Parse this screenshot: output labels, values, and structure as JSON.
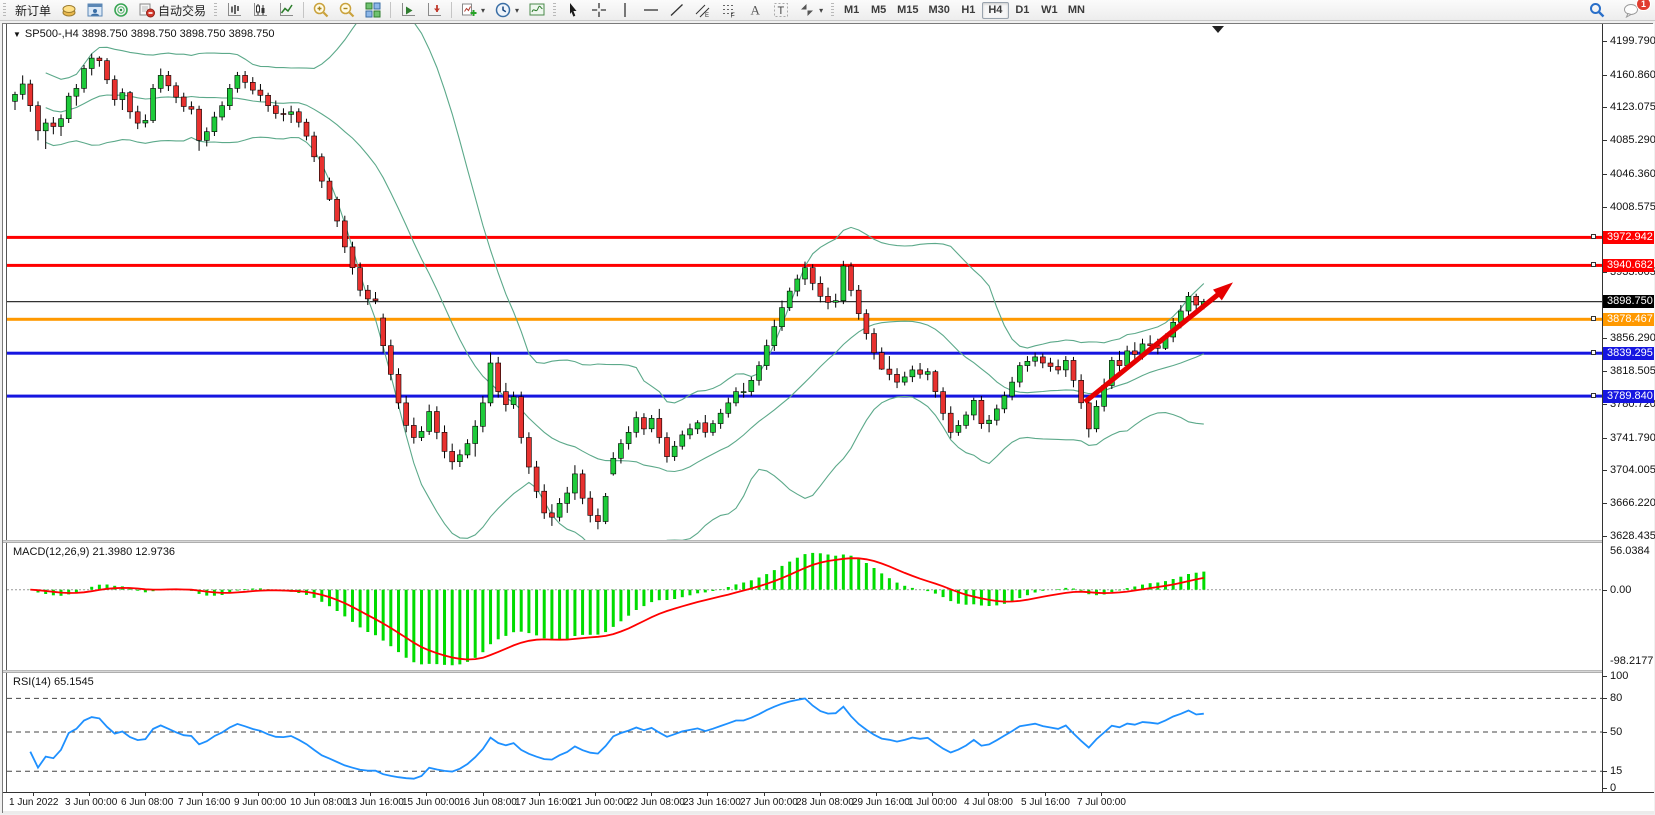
{
  "toolbar": {
    "new_order_label": "新订单",
    "autotrading_label": "自动交易",
    "icon_buttons_left": [
      "gold-seal-icon",
      "user-window-icon",
      "broadcast-icon"
    ],
    "chart_type_buttons": [
      "bar-chart-icon",
      "candlestick-icon",
      "line-chart-icon"
    ],
    "zoom_buttons": [
      "zoom-in-icon",
      "zoom-out-icon",
      "tile-windows-icon"
    ],
    "scroll_buttons": [
      "auto-scroll-icon",
      "chart-shift-icon"
    ],
    "dropdown_buttons": [
      "indicators-icon",
      "periods-clock-icon",
      "template-icon"
    ],
    "draw_buttons": [
      "cursor-icon",
      "crosshair-icon",
      "vertical-line-icon",
      "horizontal-line-icon",
      "trendline-icon",
      "channel-icon",
      "fibonacci-icon",
      "text-icon",
      "label-icon",
      "arrows-icon"
    ],
    "timeframes": [
      "M1",
      "M5",
      "M15",
      "M30",
      "H1",
      "H4",
      "D1",
      "W1",
      "MN"
    ],
    "active_timeframe": "H4",
    "notification_count": "1"
  },
  "chart": {
    "title": "SP500-,H4  3898.750 3898.750 3898.750 3898.750",
    "symbol": "SP500-",
    "period": "H4"
  },
  "price_axis": {
    "ticks": [
      "4199.790",
      "4160.860",
      "4123.075",
      "4085.290",
      "4046.360",
      "4008.575",
      "3933.005",
      "3856.290",
      "3818.505",
      "3780.720",
      "3741.790",
      "3704.005",
      "3666.220",
      "3628.435"
    ],
    "range_max": 4217,
    "range_min": 3626
  },
  "time_axis": {
    "labels": [
      "1 Jun 2022",
      "3 Jun 00:00",
      "6 Jun 08:00",
      "7 Jun 16:00",
      "9 Jun 00:00",
      "10 Jun 08:00",
      "13 Jun 16:00",
      "15 Jun 00:00",
      "16 Jun 08:00",
      "17 Jun 16:00",
      "21 Jun 00:00",
      "22 Jun 08:00",
      "23 Jun 16:00",
      "27 Jun 00:00",
      "28 Jun 08:00",
      "29 Jun 16:00",
      "1 Jul 00:00",
      "4 Jul 08:00",
      "5 Jul 16:00",
      "7 Jul 00:00"
    ]
  },
  "chart_data": {
    "type": "candlestick",
    "title": "SP500- H4",
    "colors": {
      "up": "#1ecb3a",
      "down": "#e8312f",
      "wick": "#000000",
      "bands": "#5ca98a",
      "macd_hist": "#00dc00",
      "macd_signal": "#ff0000",
      "rsi": "#1e90ff",
      "arrow": "#e60000"
    },
    "levels": [
      {
        "price": 3972.942,
        "label": "3972.942",
        "color": "#ff0000",
        "thickness": 3
      },
      {
        "price": 3940.682,
        "label": "3940.682",
        "color": "#ff0000",
        "thickness": 3
      },
      {
        "price": 3898.75,
        "label": "3898.750",
        "color": "#000000",
        "thickness": 1,
        "current": true
      },
      {
        "price": 3878.467,
        "label": "3878.467",
        "color": "#ff9900",
        "thickness": 3
      },
      {
        "price": 3839.295,
        "label": "3839.295",
        "color": "#1616e0",
        "thickness": 3
      },
      {
        "price": 3789.84,
        "label": "3789.840",
        "color": "#1616e0",
        "thickness": 3
      }
    ],
    "bollinger": {
      "period": 20,
      "deviation": 2
    },
    "arrow": {
      "from_bar": 139.5,
      "from_price": 3783,
      "to_bar": 158.8,
      "to_price": 3921
    },
    "ohlc": [
      [
        4130,
        4141,
        4120,
        4138
      ],
      [
        4138,
        4160,
        4132,
        4150
      ],
      [
        4150,
        4155,
        4118,
        4125
      ],
      [
        4125,
        4130,
        4085,
        4096
      ],
      [
        4096,
        4110,
        4075,
        4105
      ],
      [
        4105,
        4112,
        4092,
        4101
      ],
      [
        4101,
        4115,
        4090,
        4110
      ],
      [
        4110,
        4140,
        4105,
        4136
      ],
      [
        4136,
        4150,
        4125,
        4145
      ],
      [
        4145,
        4172,
        4140,
        4168
      ],
      [
        4168,
        4185,
        4160,
        4180
      ],
      [
        4180,
        4182,
        4170,
        4177
      ],
      [
        4177,
        4180,
        4150,
        4155
      ],
      [
        4155,
        4160,
        4125,
        4132
      ],
      [
        4132,
        4145,
        4120,
        4140
      ],
      [
        4140,
        4142,
        4110,
        4118
      ],
      [
        4118,
        4125,
        4098,
        4105
      ],
      [
        4105,
        4115,
        4100,
        4108
      ],
      [
        4108,
        4150,
        4105,
        4145
      ],
      [
        4145,
        4168,
        4140,
        4160
      ],
      [
        4160,
        4165,
        4142,
        4148
      ],
      [
        4148,
        4152,
        4128,
        4135
      ],
      [
        4135,
        4140,
        4118,
        4124
      ],
      [
        4124,
        4130,
        4115,
        4121
      ],
      [
        4121,
        4125,
        4073,
        4085
      ],
      [
        4085,
        4100,
        4078,
        4095
      ],
      [
        4095,
        4118,
        4090,
        4112
      ],
      [
        4112,
        4130,
        4108,
        4125
      ],
      [
        4125,
        4150,
        4120,
        4145
      ],
      [
        4145,
        4164,
        4140,
        4160
      ],
      [
        4160,
        4165,
        4145,
        4152
      ],
      [
        4152,
        4158,
        4138,
        4143
      ],
      [
        4143,
        4150,
        4130,
        4137
      ],
      [
        4137,
        4140,
        4118,
        4125
      ],
      [
        4125,
        4131,
        4110,
        4116
      ],
      [
        4116,
        4122,
        4107,
        4115
      ],
      [
        4115,
        4125,
        4105,
        4118
      ],
      [
        4118,
        4122,
        4100,
        4106
      ],
      [
        4106,
        4110,
        4085,
        4090
      ],
      [
        4090,
        4095,
        4060,
        4066
      ],
      [
        4066,
        4070,
        4030,
        4038
      ],
      [
        4038,
        4042,
        4015,
        4017
      ],
      [
        4017,
        4020,
        3985,
        3992
      ],
      [
        3992,
        3998,
        3955,
        3962
      ],
      [
        3962,
        3968,
        3930,
        3938
      ],
      [
        3938,
        3944,
        3905,
        3912
      ],
      [
        3912,
        3918,
        3895,
        3902
      ],
      [
        3902,
        3910,
        3896,
        3900
      ],
      [
        3880,
        3885,
        3840,
        3848
      ],
      [
        3848,
        3855,
        3808,
        3815
      ],
      [
        3815,
        3822,
        3775,
        3782
      ],
      [
        3782,
        3790,
        3748,
        3756
      ],
      [
        3756,
        3765,
        3735,
        3742
      ],
      [
        3742,
        3755,
        3738,
        3749
      ],
      [
        3749,
        3780,
        3745,
        3772
      ],
      [
        3772,
        3778,
        3740,
        3748
      ],
      [
        3748,
        3756,
        3718,
        3726
      ],
      [
        3726,
        3735,
        3705,
        3714
      ],
      [
        3714,
        3728,
        3708,
        3722
      ],
      [
        3722,
        3740,
        3718,
        3735
      ],
      [
        3735,
        3762,
        3720,
        3755
      ],
      [
        3755,
        3790,
        3748,
        3782
      ],
      [
        3782,
        3840,
        3778,
        3828
      ],
      [
        3828,
        3835,
        3788,
        3795
      ],
      [
        3795,
        3805,
        3772,
        3780
      ],
      [
        3780,
        3795,
        3775,
        3789
      ],
      [
        3789,
        3795,
        3735,
        3742
      ],
      [
        3742,
        3748,
        3700,
        3708
      ],
      [
        3708,
        3715,
        3672,
        3680
      ],
      [
        3680,
        3688,
        3648,
        3655
      ],
      [
        3655,
        3665,
        3640,
        3650
      ],
      [
        3650,
        3672,
        3645,
        3666
      ],
      [
        3666,
        3685,
        3655,
        3678
      ],
      [
        3678,
        3710,
        3670,
        3700
      ],
      [
        3700,
        3705,
        3665,
        3672
      ],
      [
        3672,
        3680,
        3644,
        3652
      ],
      [
        3652,
        3660,
        3636,
        3645
      ],
      [
        3645,
        3678,
        3642,
        3674
      ],
      [
        3700,
        3725,
        3698,
        3718
      ],
      [
        3718,
        3740,
        3712,
        3735
      ],
      [
        3735,
        3755,
        3728,
        3748
      ],
      [
        3748,
        3772,
        3742,
        3765
      ],
      [
        3765,
        3770,
        3745,
        3752
      ],
      [
        3752,
        3768,
        3748,
        3764
      ],
      [
        3764,
        3775,
        3735,
        3742
      ],
      [
        3742,
        3748,
        3713,
        3720
      ],
      [
        3720,
        3738,
        3715,
        3732
      ],
      [
        3732,
        3750,
        3728,
        3745
      ],
      [
        3745,
        3758,
        3740,
        3752
      ],
      [
        3752,
        3762,
        3746,
        3759
      ],
      [
        3759,
        3768,
        3742,
        3748
      ],
      [
        3748,
        3762,
        3744,
        3758
      ],
      [
        3758,
        3775,
        3752,
        3770
      ],
      [
        3770,
        3788,
        3765,
        3782
      ],
      [
        3782,
        3800,
        3778,
        3795
      ],
      [
        3795,
        3805,
        3788,
        3795
      ],
      [
        3795,
        3812,
        3790,
        3808
      ],
      [
        3808,
        3830,
        3802,
        3825
      ],
      [
        3825,
        3855,
        3820,
        3848
      ],
      [
        3848,
        3878,
        3842,
        3870
      ],
      [
        3870,
        3900,
        3865,
        3892
      ],
      [
        3892,
        3915,
        3888,
        3911
      ],
      [
        3911,
        3930,
        3905,
        3925
      ],
      [
        3925,
        3945,
        3918,
        3938
      ],
      [
        3938,
        3942,
        3912,
        3920
      ],
      [
        3920,
        3928,
        3898,
        3905
      ],
      [
        3905,
        3915,
        3890,
        3898
      ],
      [
        3898,
        3908,
        3892,
        3900
      ],
      [
        3900,
        3946,
        3896,
        3940
      ],
      [
        3940,
        3944,
        3905,
        3912
      ],
      [
        3912,
        3918,
        3878,
        3885
      ],
      [
        3885,
        3890,
        3855,
        3862
      ],
      [
        3862,
        3868,
        3832,
        3840
      ],
      [
        3840,
        3846,
        3820,
        3821
      ],
      [
        3821,
        3836,
        3808,
        3815
      ],
      [
        3815,
        3822,
        3799,
        3806
      ],
      [
        3806,
        3818,
        3802,
        3812
      ],
      [
        3812,
        3825,
        3806,
        3820
      ],
      [
        3820,
        3828,
        3810,
        3815
      ],
      [
        3815,
        3822,
        3808,
        3818
      ],
      [
        3818,
        3820,
        3788,
        3795
      ],
      [
        3795,
        3800,
        3762,
        3770
      ],
      [
        3770,
        3778,
        3741,
        3748
      ],
      [
        3748,
        3762,
        3744,
        3756
      ],
      [
        3756,
        3772,
        3752,
        3768
      ],
      [
        3768,
        3788,
        3762,
        3785
      ],
      [
        3785,
        3790,
        3752,
        3758
      ],
      [
        3758,
        3768,
        3748,
        3762
      ],
      [
        3762,
        3780,
        3756,
        3775
      ],
      [
        3775,
        3795,
        3770,
        3790
      ],
      [
        3790,
        3812,
        3785,
        3806
      ],
      [
        3806,
        3829,
        3800,
        3825
      ],
      [
        3825,
        3836,
        3818,
        3830
      ],
      [
        3830,
        3840,
        3824,
        3835
      ],
      [
        3835,
        3839,
        3822,
        3828
      ],
      [
        3828,
        3834,
        3818,
        3824
      ],
      [
        3824,
        3832,
        3815,
        3820
      ],
      [
        3820,
        3836,
        3812,
        3831
      ],
      [
        3831,
        3835,
        3800,
        3808
      ],
      [
        3808,
        3815,
        3775,
        3782
      ],
      [
        3782,
        3790,
        3742,
        3752
      ],
      [
        3752,
        3785,
        3748,
        3778
      ],
      [
        3778,
        3810,
        3772,
        3802
      ],
      [
        3802,
        3835,
        3798,
        3831
      ],
      [
        3831,
        3842,
        3818,
        3825
      ],
      [
        3825,
        3848,
        3820,
        3842
      ],
      [
        3842,
        3852,
        3830,
        3838
      ],
      [
        3838,
        3856,
        3832,
        3850
      ],
      [
        3850,
        3860,
        3842,
        3848
      ],
      [
        3848,
        3856,
        3838,
        3845
      ],
      [
        3845,
        3862,
        3843,
        3858
      ],
      [
        3858,
        3880,
        3852,
        3875
      ],
      [
        3875,
        3895,
        3868,
        3888
      ],
      [
        3888,
        3910,
        3882,
        3905
      ],
      [
        3905,
        3908,
        3888,
        3895
      ],
      [
        3895,
        3902,
        3890,
        3898.75
      ]
    ]
  },
  "macd": {
    "label": "MACD(12,26,9) 21.3980 12.9736",
    "params": "12,26,9",
    "value_main": "21.3980",
    "value_signal": "12.9736",
    "axis_max": "56.0384",
    "axis_zero": "0.00",
    "axis_min": "-98.2177",
    "range_max": 56.0384,
    "range_min": -98.2177
  },
  "rsi": {
    "label": "RSI(14) 65.1545",
    "period": "14",
    "value": "65.1545",
    "axis_labels": [
      "100",
      "80",
      "50",
      "15",
      "0"
    ],
    "dashed_levels": [
      80,
      50,
      15
    ]
  }
}
